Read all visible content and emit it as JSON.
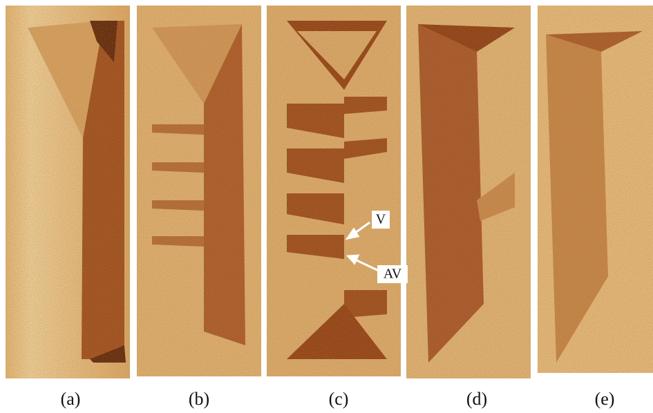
{
  "panels": [
    {
      "label": "(a)"
    },
    {
      "label": "(b)"
    },
    {
      "label": "(c)"
    },
    {
      "label": "(d)"
    },
    {
      "label": "(e)"
    }
  ],
  "annotations": [
    {
      "text": "V"
    },
    {
      "text": "AV"
    }
  ]
}
